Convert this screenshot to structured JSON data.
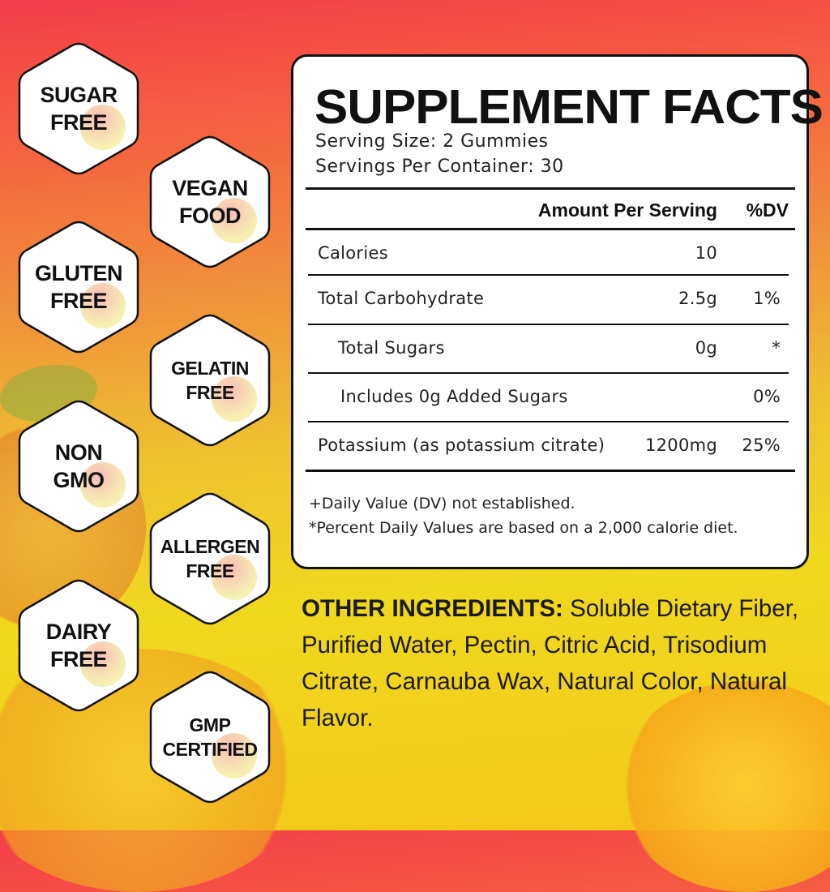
{
  "badges": [
    {
      "line1": "SUGAR",
      "line2": "FREE"
    },
    {
      "line1": "VEGAN",
      "line2": "FOOD"
    },
    {
      "line1": "GLUTEN",
      "line2": "FREE"
    },
    {
      "line1": "GELATIN",
      "line2": "FREE"
    },
    {
      "line1": "NON",
      "line2": "GMO"
    },
    {
      "line1": "ALLERGEN",
      "line2": "FREE"
    },
    {
      "line1": "DAIRY",
      "line2": "FREE"
    },
    {
      "line1": "GMP",
      "line2": "CERTIFIED"
    }
  ],
  "facts": {
    "title": "SUPPLEMENT FACTS",
    "serving_size": "Serving Size: 2 Gummies",
    "servings_per_container": "Servings Per Container: 30",
    "header_amount": "Amount Per Serving",
    "header_dv": "%DV",
    "rows": [
      {
        "name": "Calories",
        "amount": "10",
        "dv": ""
      },
      {
        "name": "Total Carbohydrate",
        "amount": "2.5g",
        "dv": "1%"
      },
      {
        "name": "Total Sugars",
        "amount": "0g",
        "dv": "*"
      },
      {
        "name": "Includes 0g Added Sugars",
        "amount": "",
        "dv": "0%"
      },
      {
        "name": "Potassium (as potassium citrate)",
        "amount": "1200mg",
        "dv": "25%"
      }
    ],
    "footnote1": "+Daily Value (DV) not established.",
    "footnote2": "*Percent Daily Values are based on a 2,000 calorie diet."
  },
  "ingredients": {
    "label": "OTHER INGREDIENTS:",
    "text": " Soluble Dietary Fiber, Purified Water, Pectin, Citric Acid, Trisodium Citrate, Carnauba Wax, Natural Color, Natural Flavor."
  }
}
